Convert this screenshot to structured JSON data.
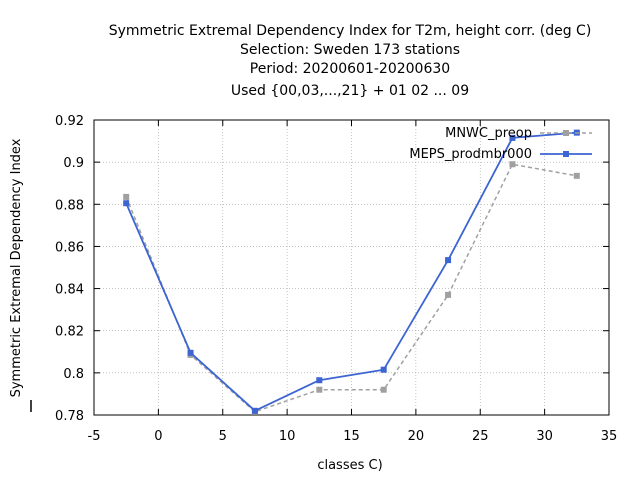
{
  "chart_data": {
    "type": "line",
    "title_lines": [
      "Symmetric Extremal Dependency Index  for T2m, height corr. (deg C)",
      "Selection: Sweden    173 stations",
      "Period: 20200601-20200630",
      "Used {00,03,...,21} + 01 02 ... 09"
    ],
    "xlabel": "classes C)",
    "ylabel": "Symmetric Extremal Dependency Index",
    "xlim": [
      -5,
      35
    ],
    "ylim": [
      0.78,
      0.92
    ],
    "x_ticks": [
      -5,
      0,
      5,
      10,
      15,
      20,
      25,
      30,
      35
    ],
    "x_tick_labels": [
      "-5",
      "0",
      "5",
      "10",
      "15",
      "20",
      "25",
      "30",
      "35"
    ],
    "y_ticks": [
      0.78,
      0.8,
      0.82,
      0.84,
      0.86,
      0.88,
      0.9,
      0.92
    ],
    "y_tick_labels": [
      "0.78",
      "0.8",
      "0.82",
      "0.84",
      "0.86",
      "0.88",
      "0.9",
      "0.92"
    ],
    "grid": true,
    "legend_position": "top-right",
    "x": [
      -2.5,
      2.5,
      7.5,
      12.5,
      17.5,
      22.5,
      27.5,
      32.5
    ],
    "series": [
      {
        "name": "MNWC_preop",
        "color": "#a0a0a0",
        "dash": true,
        "values": [
          0.8835,
          0.8085,
          0.7815,
          0.792,
          0.792,
          0.837,
          0.899,
          0.8935
        ]
      },
      {
        "name": "MEPS_prodmbr000",
        "color": "#3c64d2",
        "dash": false,
        "values": [
          0.8805,
          0.8095,
          0.782,
          0.7965,
          0.8015,
          0.8535,
          0.9115,
          0.914
        ]
      }
    ]
  }
}
